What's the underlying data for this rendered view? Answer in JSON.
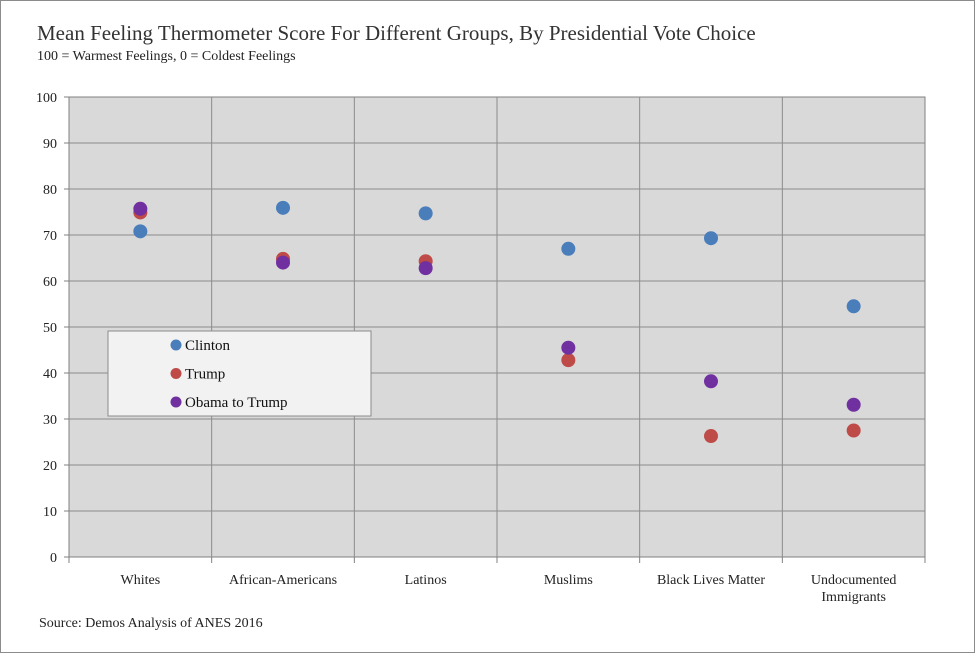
{
  "title": "Mean Feeling Thermometer Score For Different Groups, By Presidential Vote Choice",
  "subtitle": "100 = Warmest Feelings, 0 = Coldest Feelings",
  "source": "Source: Demos Analysis of ANES 2016",
  "chart_data": {
    "type": "scatter",
    "categories": [
      "Whites",
      "African-Americans",
      "Latinos",
      "Muslims",
      "Black Lives Matter",
      "Undocumented Immigrants"
    ],
    "category_lines": [
      [
        "Whites"
      ],
      [
        "African-Americans"
      ],
      [
        "Latinos"
      ],
      [
        "Muslims"
      ],
      [
        "Black Lives Matter"
      ],
      [
        "Undocumented",
        "Immigrants"
      ]
    ],
    "series": [
      {
        "name": "Clinton",
        "color": "#4a7ebb",
        "values": [
          70.8,
          75.9,
          74.7,
          67.0,
          69.3,
          54.5
        ]
      },
      {
        "name": "Trump",
        "color": "#be4b48",
        "values": [
          74.9,
          64.8,
          64.3,
          42.8,
          26.3,
          27.5
        ]
      },
      {
        "name": "Obama to Trump",
        "color": "#7030a0",
        "values": [
          75.7,
          64.0,
          62.8,
          45.5,
          38.2,
          33.1
        ]
      }
    ],
    "ylim": [
      0,
      100
    ],
    "yticks": [
      0,
      10,
      20,
      30,
      40,
      50,
      60,
      70,
      80,
      90,
      100
    ],
    "grid": true,
    "legend_position": "left-center"
  }
}
